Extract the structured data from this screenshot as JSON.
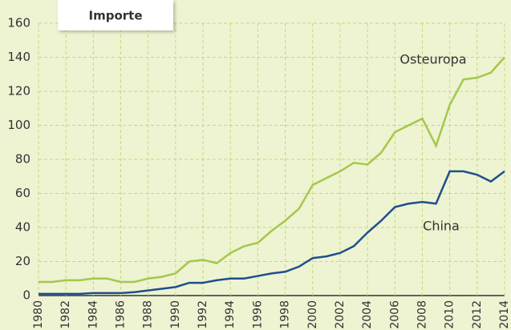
{
  "chart_data": {
    "type": "line",
    "title": "Importe",
    "x": [
      1980,
      1981,
      1982,
      1983,
      1984,
      1985,
      1986,
      1987,
      1988,
      1989,
      1990,
      1991,
      1992,
      1993,
      1994,
      1995,
      1996,
      1997,
      1998,
      1999,
      2000,
      2001,
      2002,
      2003,
      2004,
      2005,
      2006,
      2007,
      2008,
      2009,
      2010,
      2011,
      2012,
      2013,
      2014
    ],
    "series": [
      {
        "name": "Osteuropa",
        "color": "#a3c94a",
        "values": [
          8,
          8,
          9,
          9,
          10,
          10,
          8,
          8,
          10,
          11,
          13,
          20,
          21,
          19,
          25,
          29,
          31,
          38,
          44,
          51,
          65,
          69,
          73,
          78,
          77,
          84,
          96,
          100,
          104,
          88,
          112,
          127,
          128,
          131,
          140
        ]
      },
      {
        "name": "China",
        "color": "#1f4e8c",
        "values": [
          1,
          1,
          1,
          1,
          1.5,
          1.5,
          1.5,
          2,
          3,
          4,
          5,
          7.5,
          7.5,
          9,
          10,
          10,
          11.5,
          13,
          14,
          17,
          22,
          23,
          25,
          29,
          37,
          44,
          52,
          54,
          55,
          54,
          73,
          73,
          71,
          67,
          73
        ]
      }
    ],
    "xlim": [
      1980,
      2014
    ],
    "xticks": [
      1980,
      1982,
      1984,
      1986,
      1988,
      1990,
      1992,
      1994,
      1996,
      1998,
      2000,
      2002,
      2004,
      2006,
      2008,
      2010,
      2012,
      2014
    ],
    "ylim": [
      0,
      160
    ],
    "yticks": [
      0,
      20,
      40,
      60,
      80,
      100,
      120,
      140,
      160
    ],
    "grid": true
  }
}
